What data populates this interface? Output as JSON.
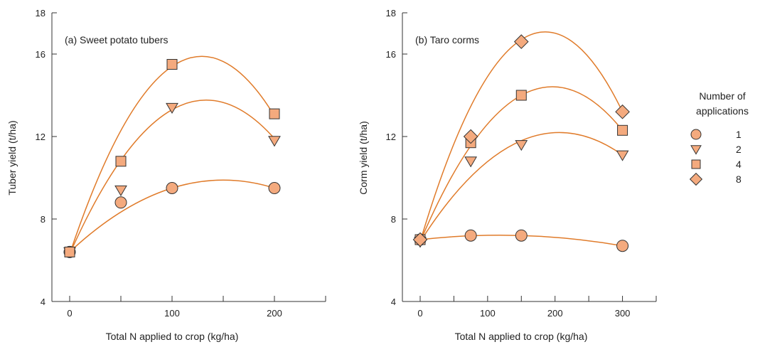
{
  "style": {
    "curve_color": "#e07b2a",
    "marker_fill": "#f4aa7e",
    "marker_stroke": "#333333",
    "axis_color": "#333333"
  },
  "legend": {
    "title_line1": "Number of",
    "title_line2": "applications",
    "placement": "right",
    "entries": [
      {
        "label": "1",
        "marker": "circle"
      },
      {
        "label": "2",
        "marker": "triangle-down"
      },
      {
        "label": "4",
        "marker": "square"
      },
      {
        "label": "8",
        "marker": "diamond"
      }
    ]
  },
  "chart_data": [
    {
      "type": "scatter",
      "title": "(a) Sweet potato tubers",
      "xlabel": "Total N applied to crop (kg/ha)",
      "ylabel": "Tuber yield (t/ha)",
      "xlim": [
        0,
        250
      ],
      "ylim": [
        4,
        18
      ],
      "xticks": [
        0,
        100,
        200
      ],
      "xminor": [
        50,
        150,
        250
      ],
      "yticks": [
        4,
        8,
        12,
        16,
        18
      ],
      "grid": false,
      "series": [
        {
          "name": "1",
          "marker": "circle",
          "x": [
            0,
            50,
            100,
            200
          ],
          "y": [
            6.4,
            8.8,
            9.5,
            9.5
          ],
          "fit": [
            6.4,
            9.5,
            9.5
          ]
        },
        {
          "name": "2",
          "marker": "triangle-down",
          "x": [
            0,
            50,
            100,
            200
          ],
          "y": [
            6.4,
            9.4,
            13.4,
            11.8
          ],
          "fit": [
            6.3,
            13.3,
            11.9
          ]
        },
        {
          "name": "4",
          "marker": "square",
          "x": [
            0,
            50,
            100,
            200
          ],
          "y": [
            6.4,
            10.8,
            15.5,
            13.1
          ],
          "fit": [
            6.3,
            15.4,
            13.0
          ]
        }
      ]
    },
    {
      "type": "scatter",
      "title": "(b) Taro corms",
      "xlabel": "Total N applied to crop (kg/ha)",
      "ylabel": "Corm yield (t/ha)",
      "xlim": [
        0,
        350
      ],
      "ylim": [
        4,
        18
      ],
      "xticks": [
        0,
        100,
        200,
        300
      ],
      "xminor": [
        50,
        150,
        250,
        350
      ],
      "yticks": [
        4,
        8,
        12,
        16,
        18
      ],
      "grid": false,
      "series": [
        {
          "name": "1",
          "marker": "circle",
          "x": [
            0,
            75,
            150,
            300
          ],
          "y": [
            7.0,
            7.2,
            7.2,
            6.7
          ],
          "fit": [
            7.0,
            7.2,
            6.7
          ]
        },
        {
          "name": "2",
          "marker": "triangle-down",
          "x": [
            0,
            75,
            150,
            300
          ],
          "y": [
            6.9,
            10.8,
            11.6,
            11.1
          ],
          "fit": [
            6.9,
            11.8,
            11.1
          ]
        },
        {
          "name": "4",
          "marker": "square",
          "x": [
            0,
            75,
            150,
            300
          ],
          "y": [
            7.0,
            11.7,
            14.0,
            12.3
          ],
          "fit": [
            6.9,
            14.0,
            12.3
          ]
        },
        {
          "name": "8",
          "marker": "diamond",
          "x": [
            0,
            75,
            150,
            300
          ],
          "y": [
            7.0,
            12.0,
            16.6,
            13.2
          ],
          "fit": [
            6.9,
            16.7,
            13.2
          ]
        }
      ]
    }
  ]
}
